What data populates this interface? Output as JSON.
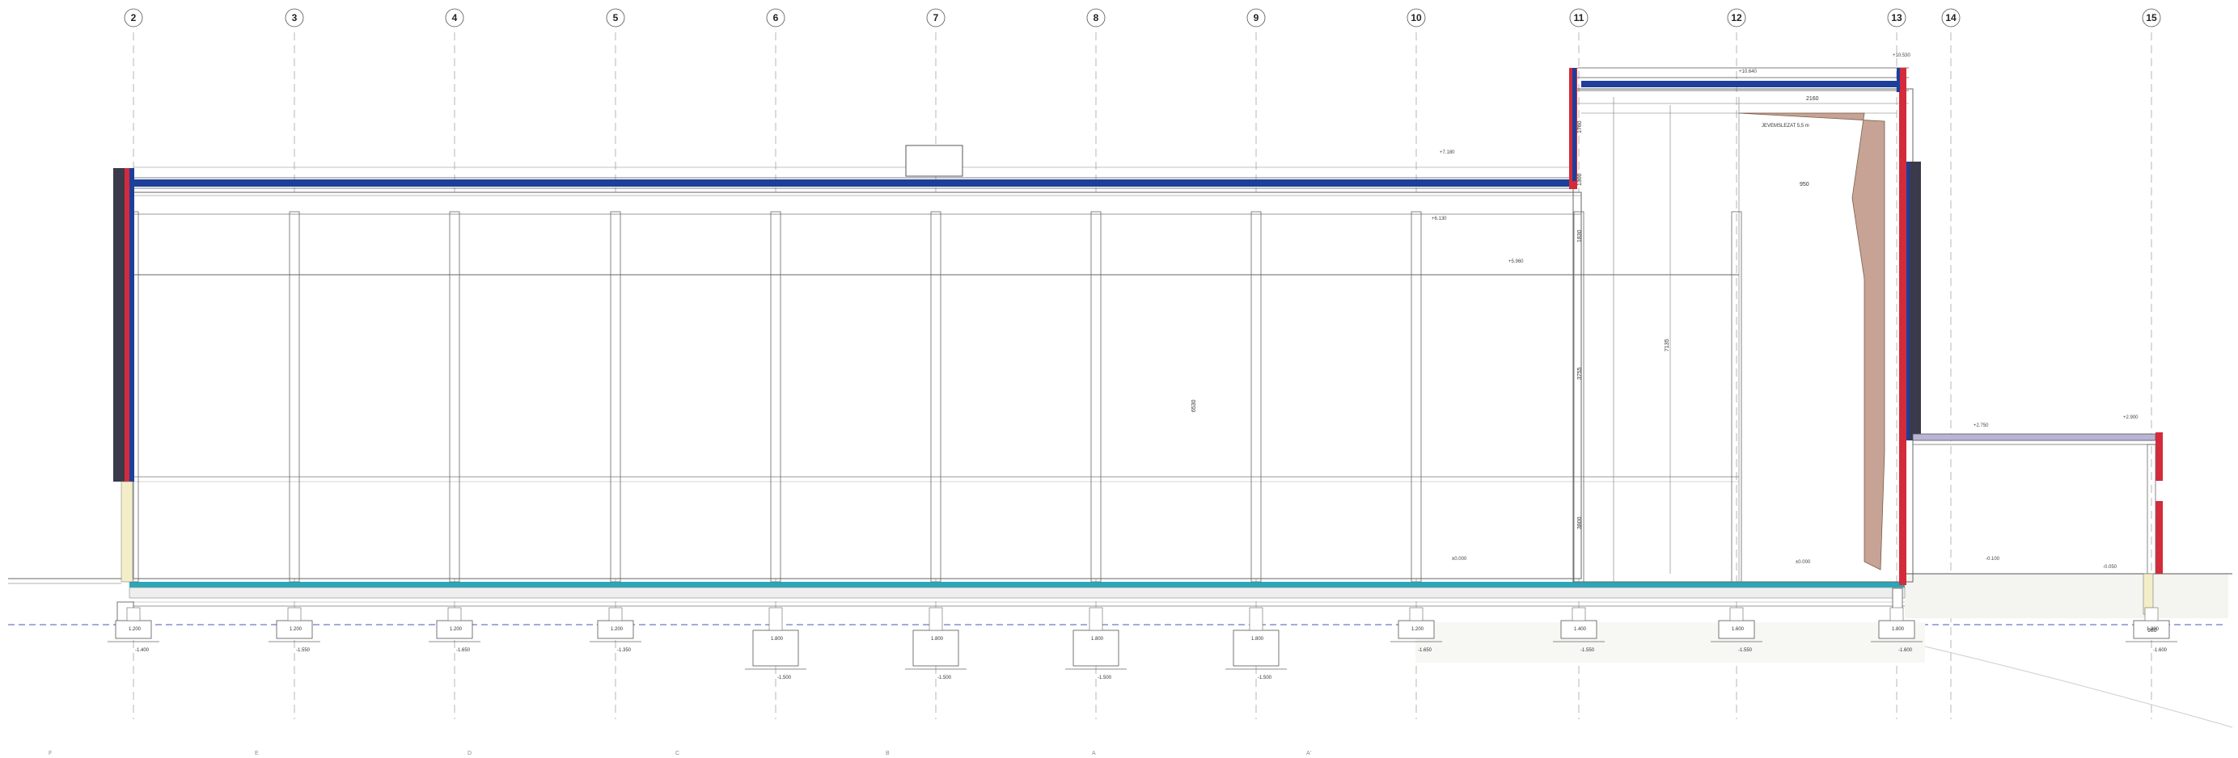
{
  "drawing": {
    "grid_axes": [
      "2",
      "3",
      "4",
      "5",
      "6",
      "7",
      "8",
      "9",
      "10",
      "11",
      "12",
      "13",
      "14",
      "15"
    ],
    "levels": {
      "main_roof": "+7.180",
      "ceiling": "+6.130",
      "beam": "+5.960",
      "high_roof": "+10.640",
      "high_roof_right": "+10.530",
      "canopy_left": "+2.750",
      "canopy_right": "+2.900",
      "floor_a": "±0.000",
      "floor_b": "±0.000",
      "floor_c": "-0.100",
      "outside": "-0.050"
    },
    "dimensions": {
      "tower_top": "1760",
      "tower_a": "1300",
      "tower_b": "1830",
      "tower_c": "2160",
      "tower_mid": "3755",
      "tower_low": "3800",
      "wall_12": "7135",
      "hall_height": "6530",
      "side": "950",
      "side_b": "980"
    },
    "notes": {
      "tower_note": "JEVEMSLEZAT 5,5 m"
    },
    "foundations": {
      "depths": [
        "-1.400",
        "-1.550",
        "-1.650",
        "-1.350",
        "-1.500",
        "-1.500",
        "-1.500",
        "-1.500",
        "-1.650",
        "-1.550",
        "-1.550",
        "-1.600",
        "-1.600"
      ],
      "widths": [
        "1.200",
        "1.200",
        "1.200",
        "1.200",
        "1.800",
        "1.800",
        "1.800",
        "1.800",
        "1.200",
        "1.400",
        "1.600",
        "1.800",
        "1.200"
      ]
    },
    "bottom_refs": [
      "F",
      "E",
      "D",
      "C",
      "B",
      "A",
      "A'"
    ],
    "colors": {
      "roof_blue": "#1d3f9a",
      "wall_red": "#d42a3a",
      "cladding_dark": "#3a3a4a",
      "floor_cyan": "#2aa7b8",
      "wall_yellow": "#f3eec7",
      "chimney_brown": "#c6a394",
      "canopy_lavender": "#b9b4d6"
    }
  }
}
